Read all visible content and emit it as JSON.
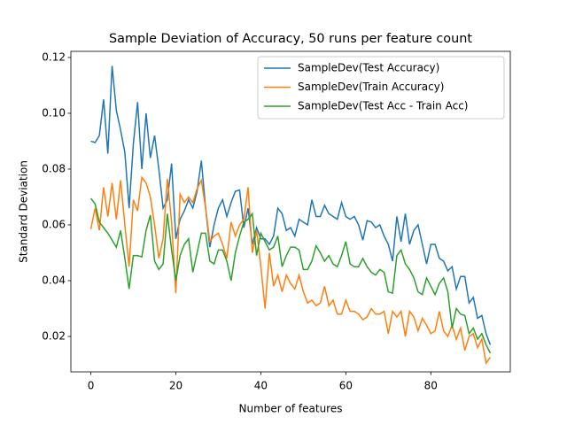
{
  "chart_data": {
    "type": "line",
    "title": "Sample Deviation of Accuracy, 50 runs per feature count",
    "xlabel": "Number of features",
    "ylabel": "Standard Deviation",
    "x": [
      0,
      1,
      2,
      3,
      4,
      5,
      6,
      7,
      8,
      9,
      10,
      11,
      12,
      13,
      14,
      15,
      16,
      17,
      18,
      19,
      20,
      21,
      22,
      23,
      24,
      25,
      26,
      27,
      28,
      29,
      30,
      31,
      32,
      33,
      34,
      35,
      36,
      37,
      38,
      39,
      40,
      41,
      42,
      43,
      44,
      45,
      46,
      47,
      48,
      49,
      50,
      51,
      52,
      53,
      54,
      55,
      56,
      57,
      58,
      59,
      60,
      61,
      62,
      63,
      64,
      65,
      66,
      67,
      68,
      69,
      70,
      71,
      72,
      73,
      74,
      75,
      76,
      77,
      78,
      79,
      80,
      81,
      82,
      83,
      84,
      85,
      86,
      87,
      88,
      89,
      90,
      91,
      92,
      93,
      94
    ],
    "series": [
      {
        "name": "SampleDev(Test Accuracy)",
        "color": "#1f77b4",
        "values": [
          0.09,
          0.0895,
          0.092,
          0.105,
          0.0855,
          0.117,
          0.101,
          0.094,
          0.086,
          0.066,
          0.089,
          0.104,
          0.08,
          0.1,
          0.084,
          0.092,
          0.08,
          0.066,
          0.069,
          0.082,
          0.055,
          0.062,
          0.065,
          0.069,
          0.066,
          0.072,
          0.083,
          0.066,
          0.052,
          0.06,
          0.066,
          0.069,
          0.063,
          0.068,
          0.072,
          0.0725,
          0.059,
          0.066,
          0.053,
          0.059,
          0.055,
          0.055,
          0.053,
          0.056,
          0.066,
          0.064,
          0.058,
          0.059,
          0.056,
          0.062,
          0.061,
          0.06,
          0.069,
          0.063,
          0.063,
          0.067,
          0.064,
          0.063,
          0.062,
          0.068,
          0.063,
          0.062,
          0.063,
          0.06,
          0.0545,
          0.0615,
          0.061,
          0.059,
          0.06,
          0.056,
          0.053,
          0.047,
          0.063,
          0.054,
          0.064,
          0.053,
          0.058,
          0.06,
          0.053,
          0.046,
          0.053,
          0.053,
          0.048,
          0.047,
          0.0435,
          0.045,
          0.037,
          0.0415,
          0.0415,
          0.032,
          0.034,
          0.0265,
          0.0275,
          0.021,
          0.017
        ]
      },
      {
        "name": "SampleDev(Train Accuracy)",
        "color": "#ff7f0e",
        "values": [
          0.0585,
          0.066,
          0.058,
          0.0735,
          0.063,
          0.075,
          0.062,
          0.076,
          0.06,
          0.045,
          0.069,
          0.065,
          0.077,
          0.075,
          0.07,
          0.06,
          0.048,
          0.055,
          0.0765,
          0.061,
          0.0355,
          0.071,
          0.068,
          0.07,
          0.068,
          0.073,
          0.076,
          0.066,
          0.054,
          0.056,
          0.057,
          0.053,
          0.048,
          0.061,
          0.056,
          0.06,
          0.062,
          0.0735,
          0.05,
          0.058,
          0.045,
          0.03,
          0.05,
          0.038,
          0.042,
          0.036,
          0.042,
          0.039,
          0.037,
          0.042,
          0.036,
          0.032,
          0.033,
          0.031,
          0.032,
          0.038,
          0.031,
          0.033,
          0.028,
          0.028,
          0.033,
          0.029,
          0.029,
          0.028,
          0.026,
          0.027,
          0.03,
          0.028,
          0.028,
          0.029,
          0.021,
          0.029,
          0.027,
          0.029,
          0.02,
          0.029,
          0.027,
          0.022,
          0.0265,
          0.024,
          0.021,
          0.022,
          0.029,
          0.022,
          0.02,
          0.024,
          0.019,
          0.023,
          0.015,
          0.02,
          0.021,
          0.016,
          0.019,
          0.0105,
          0.0125
        ]
      },
      {
        "name": "SampleDev(Test Acc - Train Acc)",
        "color": "#2ca02c",
        "values": [
          0.0695,
          0.0675,
          0.061,
          0.059,
          0.057,
          0.0545,
          0.052,
          0.058,
          0.048,
          0.037,
          0.049,
          0.049,
          0.0485,
          0.058,
          0.0635,
          0.047,
          0.044,
          0.046,
          0.064,
          0.051,
          0.04,
          0.049,
          0.053,
          0.055,
          0.043,
          0.05,
          0.057,
          0.057,
          0.047,
          0.046,
          0.051,
          0.051,
          0.047,
          0.04,
          0.05,
          0.056,
          0.061,
          0.062,
          0.064,
          0.049,
          0.057,
          0.054,
          0.051,
          0.052,
          0.056,
          0.045,
          0.049,
          0.052,
          0.052,
          0.051,
          0.044,
          0.044,
          0.047,
          0.0525,
          0.05,
          0.047,
          0.049,
          0.046,
          0.045,
          0.049,
          0.054,
          0.046,
          0.045,
          0.045,
          0.048,
          0.045,
          0.043,
          0.042,
          0.044,
          0.043,
          0.036,
          0.0355,
          0.049,
          0.051,
          0.046,
          0.044,
          0.041,
          0.036,
          0.035,
          0.041,
          0.038,
          0.035,
          0.039,
          0.041,
          0.036,
          0.023,
          0.03,
          0.028,
          0.0275,
          0.021,
          0.023,
          0.019,
          0.021,
          0.017,
          0.014
        ]
      }
    ],
    "xlim": [
      -4.7,
      98.7
    ],
    "ylim": [
      0.0073,
      0.1222
    ],
    "xticks": [
      0,
      20,
      40,
      60,
      80
    ],
    "yticks": [
      0.02,
      0.04,
      0.06,
      0.08,
      {
        "value": 0.1,
        "label": "0.10"
      },
      0.12
    ],
    "legend": "upper right"
  }
}
